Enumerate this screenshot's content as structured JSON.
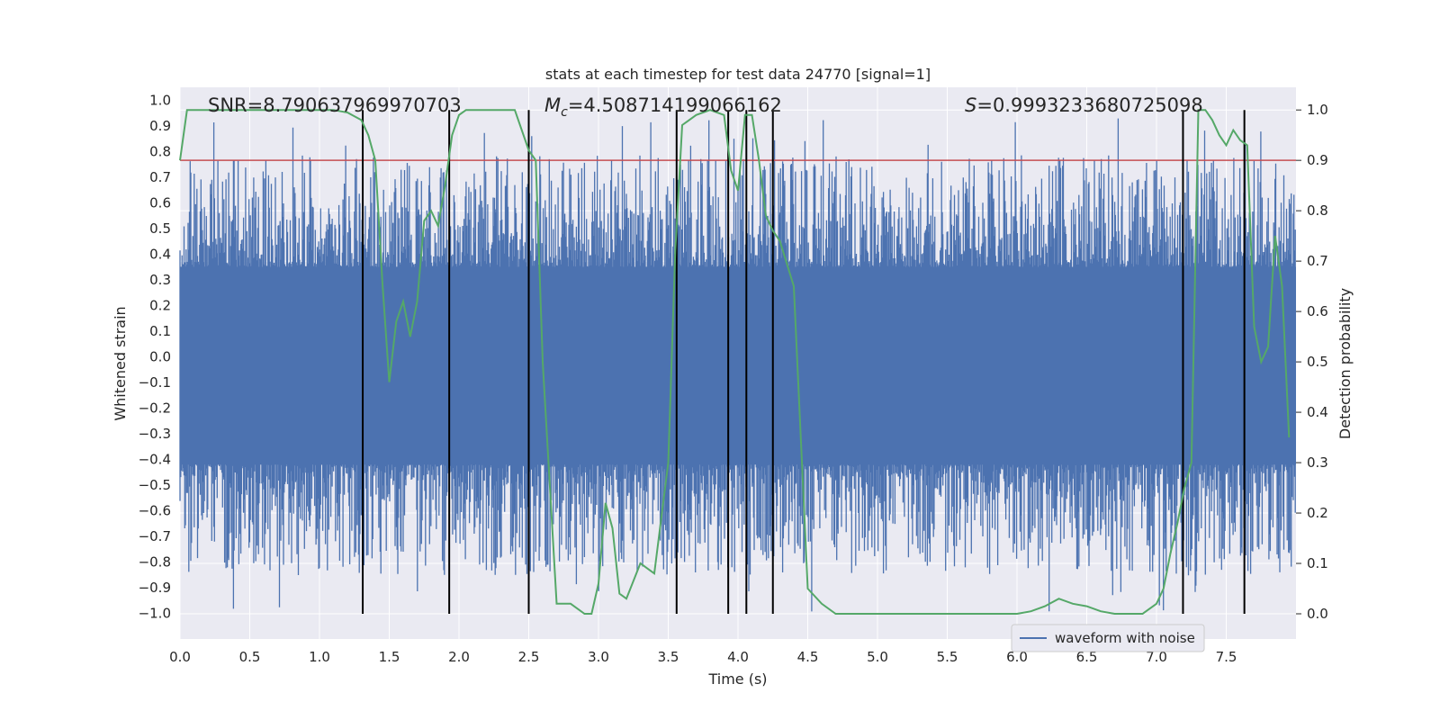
{
  "chart_data": {
    "type": "line",
    "title": "stats at each timestep for test data 24770 [signal=1]",
    "xlabel": "Time (s)",
    "ylabel_left": "Whitened strain",
    "ylabel_right": "Detection probability",
    "xlim": [
      0.0,
      8.0
    ],
    "ylim_left": [
      -1.1,
      1.05
    ],
    "ylim_right": [
      -0.05,
      1.045
    ],
    "x_ticks": [
      "0.0",
      "0.5",
      "1.0",
      "1.5",
      "2.0",
      "2.5",
      "3.0",
      "3.5",
      "4.0",
      "4.5",
      "5.0",
      "5.5",
      "6.0",
      "6.5",
      "7.0",
      "7.5"
    ],
    "y_ticks_left": [
      "1.0",
      "0.9",
      "0.8",
      "0.7",
      "0.6",
      "0.5",
      "0.4",
      "0.3",
      "0.2",
      "0.1",
      "0.0",
      "−0.1",
      "−0.2",
      "−0.3",
      "−0.4",
      "−0.5",
      "−0.6",
      "−0.7",
      "−0.8",
      "−0.9",
      "−1.0"
    ],
    "y_ticks_right": [
      "1.0",
      "0.9",
      "0.8",
      "0.7",
      "0.6",
      "0.5",
      "0.4",
      "0.3",
      "0.2",
      "0.1",
      "0.0"
    ],
    "grid": true,
    "legend": {
      "placement": "lower-right",
      "entries": [
        "waveform with noise"
      ]
    },
    "annotations": {
      "snr": "SNR=8.790637969970703",
      "mc_symbol": "M",
      "mc_sub": "c",
      "mc_value": "=4.508714199066162",
      "s_symbol": "S",
      "s_value": "=0.9993233680725098"
    },
    "threshold": 0.9,
    "vertical_markers": [
      1.31,
      1.93,
      2.5,
      3.56,
      3.93,
      4.06,
      4.25,
      7.19,
      7.63
    ],
    "series": [
      {
        "name": "waveform with noise",
        "axis": "left",
        "kind": "noise",
        "typical_range": [
          -0.42,
          0.35
        ],
        "extreme_range": [
          -1.0,
          0.93
        ]
      },
      {
        "axis": "right",
        "x": [
          0.0,
          0.05,
          0.1,
          0.2,
          0.4,
          0.6,
          0.8,
          1.0,
          1.1,
          1.2,
          1.3,
          1.35,
          1.4,
          1.45,
          1.5,
          1.55,
          1.6,
          1.65,
          1.7,
          1.75,
          1.8,
          1.85,
          1.9,
          1.95,
          2.0,
          2.05,
          2.1,
          2.2,
          2.3,
          2.4,
          2.5,
          2.55,
          2.6,
          2.7,
          2.75,
          2.8,
          2.85,
          2.9,
          2.95,
          3.0,
          3.05,
          3.1,
          3.15,
          3.2,
          3.3,
          3.4,
          3.5,
          3.55,
          3.6,
          3.7,
          3.8,
          3.9,
          3.95,
          4.0,
          4.05,
          4.1,
          4.15,
          4.2,
          4.25,
          4.3,
          4.4,
          4.5,
          4.6,
          4.7,
          4.8,
          5.0,
          5.5,
          5.8,
          6.0,
          6.1,
          6.2,
          6.3,
          6.4,
          6.5,
          6.6,
          6.7,
          6.9,
          7.0,
          7.05,
          7.1,
          7.15,
          7.2,
          7.25,
          7.3,
          7.35,
          7.4,
          7.45,
          7.5,
          7.55,
          7.6,
          7.65,
          7.7,
          7.75,
          7.8,
          7.85,
          7.9,
          7.95
        ],
        "values": [
          0.9,
          1.0,
          1.0,
          1.0,
          1.0,
          1.0,
          1.0,
          1.0,
          1.0,
          0.995,
          0.98,
          0.95,
          0.9,
          0.66,
          0.46,
          0.58,
          0.62,
          0.55,
          0.62,
          0.78,
          0.8,
          0.77,
          0.85,
          0.95,
          0.99,
          1.0,
          1.0,
          1.0,
          1.0,
          1.0,
          0.92,
          0.9,
          0.5,
          0.02,
          0.02,
          0.02,
          0.01,
          0.0,
          0.0,
          0.06,
          0.22,
          0.17,
          0.04,
          0.03,
          0.1,
          0.08,
          0.3,
          0.72,
          0.97,
          0.99,
          1.0,
          0.99,
          0.88,
          0.84,
          0.99,
          0.99,
          0.9,
          0.79,
          0.76,
          0.74,
          0.65,
          0.05,
          0.02,
          0.0,
          0.0,
          0.0,
          0.0,
          0.0,
          0.0,
          0.005,
          0.015,
          0.03,
          0.02,
          0.015,
          0.005,
          0.0,
          0.0,
          0.02,
          0.05,
          0.12,
          0.18,
          0.25,
          0.3,
          1.0,
          1.0,
          0.98,
          0.95,
          0.93,
          0.96,
          0.94,
          0.93,
          0.57,
          0.5,
          0.53,
          0.75,
          0.65,
          0.35
        ]
      }
    ]
  },
  "colors": {
    "plot_background": "#eaeaf2",
    "grid": "#ffffff",
    "waveform": "#4c72b0",
    "probability": "#55a868",
    "threshold": "#c44e52",
    "marker": "#000000",
    "text": "#262626"
  }
}
